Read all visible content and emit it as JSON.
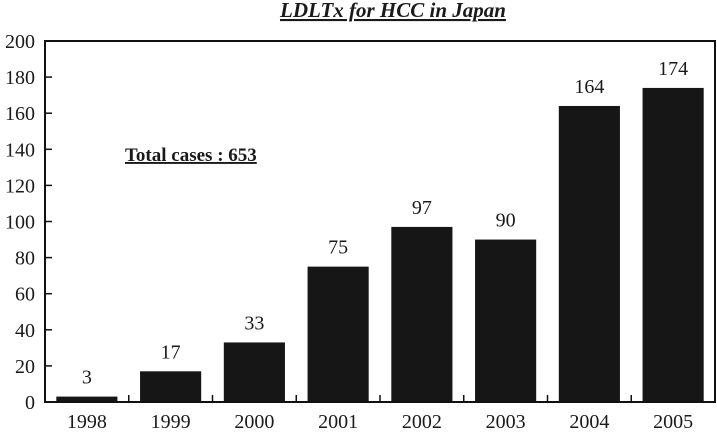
{
  "chart_data": {
    "type": "bar",
    "title": "LDLTx for HCC in Japan",
    "categories": [
      "1998",
      "1999",
      "2000",
      "2001",
      "2002",
      "2003",
      "2004",
      "2005"
    ],
    "values": [
      3,
      17,
      33,
      75,
      97,
      90,
      164,
      174
    ],
    "data_labels": [
      "3",
      "17",
      "33",
      "75",
      "97",
      "90",
      "164",
      "174"
    ],
    "yticks": [
      "0",
      "20",
      "40",
      "60",
      "80",
      "100",
      "120",
      "140",
      "160",
      "180",
      "200"
    ],
    "ylim": [
      0,
      200
    ],
    "annotation": "Total cases : 653",
    "grid": false,
    "legend": "none",
    "bar_color": "#161616"
  }
}
